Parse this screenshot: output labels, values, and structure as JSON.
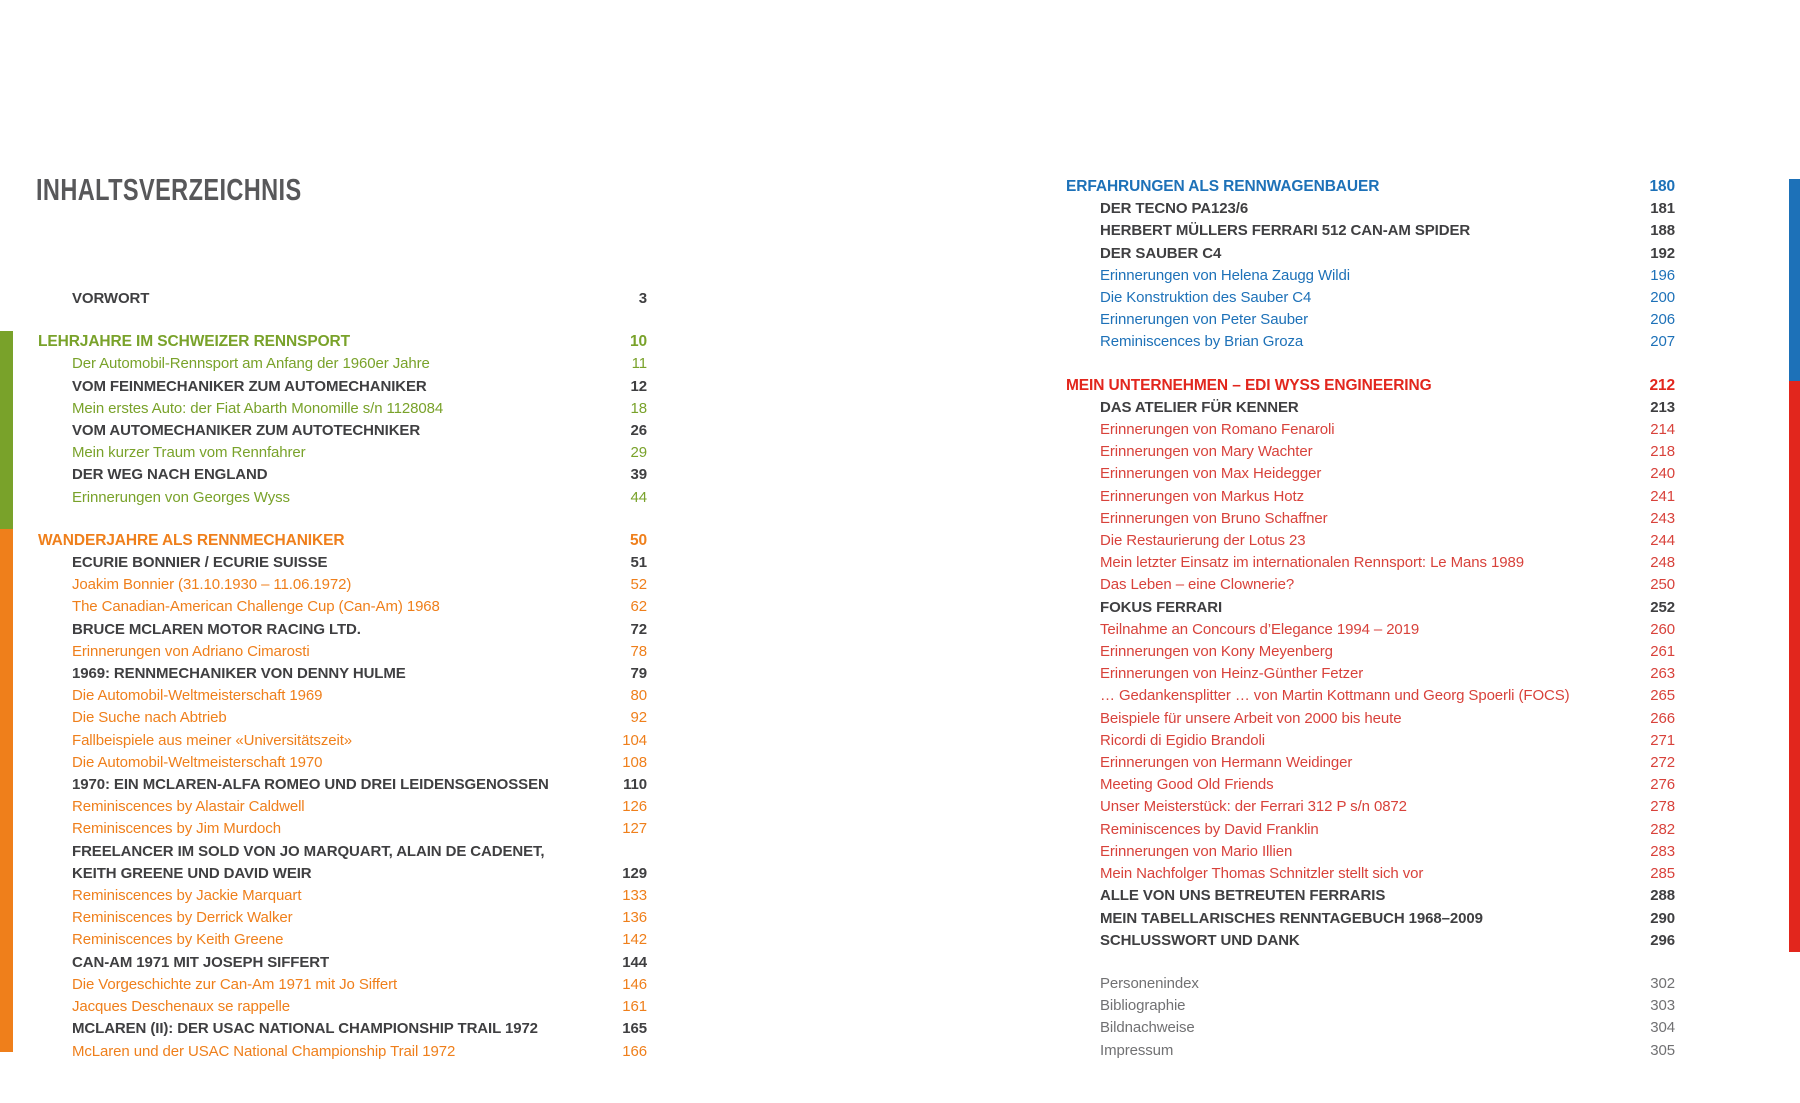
{
  "page": {
    "title": "INHALTSVERZEICHNIS"
  },
  "colors": {
    "green": "#79A22A",
    "orange": "#EF7F1B",
    "blue": "#1D71B8",
    "red": "#D8423B",
    "red_strong": "#E2261D",
    "dark": "#3F3F41",
    "gray": "#717173",
    "title_gray": "#58585A"
  },
  "left_column": {
    "rows": [
      {
        "label": "VORWORT",
        "page": "3",
        "style": "bold",
        "gap": false
      },
      {
        "label": "LEHRJAHRE IM SCHWEIZER RENNSPORT",
        "page": "10",
        "style": "section-green",
        "gap": true
      },
      {
        "label": "Der Automobil-Rennsport am Anfang der 1960er Jahre",
        "page": "11",
        "style": "green",
        "gap": false
      },
      {
        "label": "VOM FEINMECHANIKER ZUM AUTOMECHANIKER",
        "page": "12",
        "style": "bold",
        "gap": false
      },
      {
        "label": "Mein erstes Auto: der Fiat Abarth Monomille s/n 1128084",
        "page": "18",
        "style": "green",
        "gap": false
      },
      {
        "label": "VOM AUTOMECHANIKER ZUM AUTOTECHNIKER",
        "page": "26",
        "style": "bold",
        "gap": false
      },
      {
        "label": "Mein kurzer Traum vom Rennfahrer",
        "page": "29",
        "style": "green",
        "gap": false
      },
      {
        "label": "DER WEG NACH ENGLAND",
        "page": "39",
        "style": "bold",
        "gap": false
      },
      {
        "label": "Erinnerungen von Georges Wyss",
        "page": "44",
        "style": "green",
        "gap": false
      },
      {
        "label": "WANDERJAHRE ALS RENNMECHANIKER",
        "page": "50",
        "style": "section-orange",
        "gap": true
      },
      {
        "label": "ECURIE BONNIER / ECURIE SUISSE",
        "page": "51",
        "style": "bold",
        "gap": false
      },
      {
        "label": "Joakim Bonnier (31.10.1930 – 11.06.1972)",
        "page": "52",
        "style": "orange",
        "gap": false
      },
      {
        "label": "The Canadian-American Challenge Cup (Can-Am) 1968",
        "page": "62",
        "style": "orange",
        "gap": false
      },
      {
        "label": "BRUCE MCLAREN MOTOR RACING LTD.",
        "page": "72",
        "style": "bold",
        "gap": false
      },
      {
        "label": "Erinnerungen von Adriano Cimarosti",
        "page": "78",
        "style": "orange",
        "gap": false
      },
      {
        "label": "1969: RENNMECHANIKER VON DENNY HULME",
        "page": "79",
        "style": "bold",
        "gap": false
      },
      {
        "label": "Die Automobil-Weltmeisterschaft 1969",
        "page": "80",
        "style": "orange",
        "gap": false
      },
      {
        "label": "Die Suche nach Abtrieb",
        "page": "92",
        "style": "orange",
        "gap": false
      },
      {
        "label": "Fallbeispiele aus meiner «Universitätszeit»",
        "page": "104",
        "style": "orange",
        "gap": false
      },
      {
        "label": "Die Automobil-Weltmeisterschaft 1970",
        "page": "108",
        "style": "orange",
        "gap": false
      },
      {
        "label": "1970: EIN MCLAREN-ALFA ROMEO UND DREI LEIDENSGENOSSEN",
        "page": "110",
        "style": "bold",
        "gap": false
      },
      {
        "label": "Reminiscences by Alastair Caldwell",
        "page": "126",
        "style": "orange",
        "gap": false
      },
      {
        "label": "Reminiscences by Jim Murdoch",
        "page": "127",
        "style": "orange",
        "gap": false
      },
      {
        "label": "FREELANCER IM SOLD VON JO MARQUART, ALAIN DE CADENET,",
        "page": "",
        "style": "bold",
        "gap": false
      },
      {
        "label": "KEITH GREENE UND DAVID WEIR",
        "page": "129",
        "style": "bold",
        "gap": false
      },
      {
        "label": "Reminiscences by Jackie Marquart",
        "page": "133",
        "style": "orange",
        "gap": false
      },
      {
        "label": "Reminiscences by Derrick Walker",
        "page": "136",
        "style": "orange",
        "gap": false
      },
      {
        "label": "Reminiscences by Keith Greene",
        "page": "142",
        "style": "orange",
        "gap": false
      },
      {
        "label": "CAN-AM 1971 MIT JOSEPH SIFFERT",
        "page": "144",
        "style": "bold",
        "gap": false
      },
      {
        "label": "Die Vorgeschichte zur Can-Am 1971 mit Jo Siffert",
        "page": "146",
        "style": "orange",
        "gap": false
      },
      {
        "label": "Jacques Deschenaux se rappelle",
        "page": "161",
        "style": "orange",
        "gap": false
      },
      {
        "label": "MCLAREN (II): DER USAC NATIONAL CHAMPIONSHIP TRAIL 1972",
        "page": "165",
        "style": "bold",
        "gap": false
      },
      {
        "label": "McLaren und der USAC National Championship Trail 1972",
        "page": "166",
        "style": "orange",
        "gap": false
      }
    ]
  },
  "right_column": {
    "rows": [
      {
        "label": "ERFAHRUNGEN ALS RENNWAGENBAUER",
        "page": "180",
        "style": "section-blue",
        "gap": false
      },
      {
        "label": "DER TECNO PA123/6",
        "page": "181",
        "style": "bold",
        "gap": false
      },
      {
        "label": "HERBERT MÜLLERS FERRARI 512 CAN-AM SPIDER",
        "page": "188",
        "style": "bold",
        "gap": false
      },
      {
        "label": "DER SAUBER C4",
        "page": "192",
        "style": "bold",
        "gap": false
      },
      {
        "label": "Erinnerungen von Helena Zaugg Wildi",
        "page": "196",
        "style": "blue",
        "gap": false
      },
      {
        "label": "Die Konstruktion des Sauber C4",
        "page": "200",
        "style": "blue",
        "gap": false
      },
      {
        "label": "Erinnerungen von Peter Sauber",
        "page": "206",
        "style": "blue",
        "gap": false
      },
      {
        "label": "Reminiscences by Brian Groza",
        "page": "207",
        "style": "blue",
        "gap": false
      },
      {
        "label": "MEIN UNTERNEHMEN – EDI WYSS ENGINEERING",
        "page": "212",
        "style": "section-red",
        "gap": true
      },
      {
        "label": "DAS ATELIER FÜR KENNER",
        "page": "213",
        "style": "bold",
        "gap": false
      },
      {
        "label": "Erinnerungen von Romano Fenaroli",
        "page": "214",
        "style": "red",
        "gap": false
      },
      {
        "label": "Erinnerungen von Mary Wachter",
        "page": "218",
        "style": "red",
        "gap": false
      },
      {
        "label": "Erinnerungen von Max Heidegger",
        "page": "240",
        "style": "red",
        "gap": false
      },
      {
        "label": "Erinnerungen von Markus Hotz",
        "page": "241",
        "style": "red",
        "gap": false
      },
      {
        "label": "Erinnerungen von Bruno Schaffner",
        "page": "243",
        "style": "red",
        "gap": false
      },
      {
        "label": "Die Restaurierung der Lotus 23",
        "page": "244",
        "style": "red",
        "gap": false
      },
      {
        "label": "Mein letzter Einsatz im internationalen Rennsport: Le Mans 1989",
        "page": "248",
        "style": "red",
        "gap": false
      },
      {
        "label": "Das Leben – eine Clownerie?",
        "page": "250",
        "style": "red",
        "gap": false
      },
      {
        "label": "FOKUS FERRARI",
        "page": "252",
        "style": "bold",
        "gap": false
      },
      {
        "label": "Teilnahme an Concours d’Elegance 1994 – 2019",
        "page": "260",
        "style": "red",
        "gap": false
      },
      {
        "label": "Erinnerungen von Kony Meyenberg",
        "page": "261",
        "style": "red",
        "gap": false
      },
      {
        "label": "Erinnerungen von Heinz-Günther Fetzer",
        "page": "263",
        "style": "red",
        "gap": false
      },
      {
        "label": "… Gedankensplitter … von Martin Kottmann und Georg Spoerli (FOCS)",
        "page": "265",
        "style": "red",
        "gap": false
      },
      {
        "label": "Beispiele für unsere Arbeit von 2000 bis heute",
        "page": "266",
        "style": "red",
        "gap": false
      },
      {
        "label": "Ricordi di Egidio Brandoli",
        "page": "271",
        "style": "red",
        "gap": false
      },
      {
        "label": "Erinnerungen von Hermann Weidinger",
        "page": "272",
        "style": "red",
        "gap": false
      },
      {
        "label": "Meeting Good Old Friends",
        "page": "276",
        "style": "red",
        "gap": false
      },
      {
        "label": "Unser Meisterstück: der Ferrari 312 P s/n 0872",
        "page": "278",
        "style": "red",
        "gap": false
      },
      {
        "label": "Reminiscences by David Franklin",
        "page": "282",
        "style": "red",
        "gap": false
      },
      {
        "label": "Erinnerungen von Mario Illien",
        "page": "283",
        "style": "red",
        "gap": false
      },
      {
        "label": "Mein Nachfolger Thomas Schnitzler stellt sich vor",
        "page": "285",
        "style": "red",
        "gap": false
      },
      {
        "label": "ALLE VON UNS BETREUTEN FERRARIS",
        "page": "288",
        "style": "bold",
        "gap": false
      },
      {
        "label": "MEIN TABELLARISCHES RENNTAGEBUCH 1968–2009",
        "page": "290",
        "style": "bold",
        "gap": false
      },
      {
        "label": "SCHLUSSWORT UND DANK",
        "page": "296",
        "style": "bold",
        "gap": false
      },
      {
        "label": "Personenindex",
        "page": "302",
        "style": "gray",
        "gap": true
      },
      {
        "label": "Bibliographie",
        "page": "303",
        "style": "gray",
        "gap": false
      },
      {
        "label": "Bildnachweise",
        "page": "304",
        "style": "gray",
        "gap": false
      },
      {
        "label": "Impressum",
        "page": "305",
        "style": "gray",
        "gap": false
      }
    ]
  },
  "edge_bars": {
    "left_top_section": "green",
    "left_bottom_section": "orange",
    "right_top_section": "blue",
    "right_bottom_section": "red_strong"
  }
}
